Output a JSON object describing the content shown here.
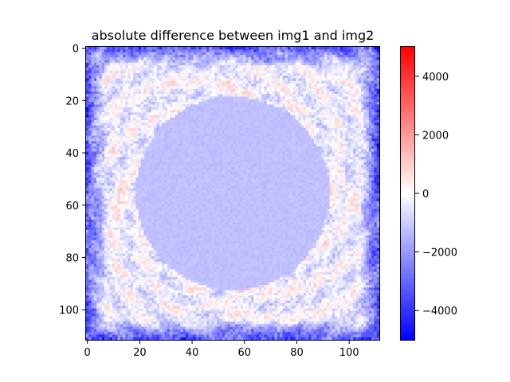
{
  "chart_data": {
    "type": "heatmap",
    "title": "absolute difference between img1 and img2",
    "xlabel": "",
    "ylabel": "",
    "image_size": [
      112,
      112
    ],
    "xlim": [
      -0.5,
      111.5
    ],
    "ylim": [
      111.5,
      -0.5
    ],
    "x_ticks": [
      0,
      20,
      40,
      60,
      80,
      100
    ],
    "y_ticks": [
      0,
      20,
      40,
      60,
      80,
      100
    ],
    "colormap": "bwr",
    "color_range": [
      -5000,
      5000
    ],
    "colorbar_ticks": [
      -4000,
      -2000,
      0,
      2000,
      4000
    ],
    "colorbar_tick_labels": [
      "−4000",
      "−2000",
      "0",
      "2000",
      "4000"
    ],
    "colors": {
      "low": "#0000ff",
      "mid": "#ffffff",
      "high": "#ff0000"
    },
    "pattern": {
      "center": [
        55.5,
        55.5
      ],
      "disc_radius": 37,
      "disc_value": -1250,
      "ring_value": -300,
      "corner_value": -4200,
      "positive_spots": [
        {
          "x": 97,
          "y": 58,
          "value": 900
        },
        {
          "x": 14,
          "y": 58,
          "value": 700
        },
        {
          "x": 56,
          "y": 95,
          "value": 800
        },
        {
          "x": 56,
          "y": 15,
          "value": 600
        }
      ]
    },
    "grid": false,
    "legend": "colorbar-right"
  }
}
